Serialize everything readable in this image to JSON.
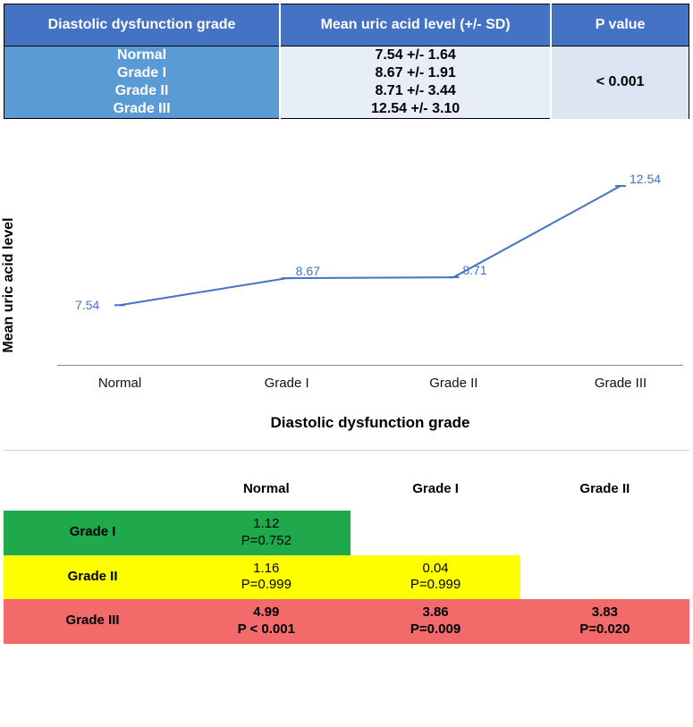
{
  "top_table": {
    "header_bg": "#4472c4",
    "header_fg": "#ffffff",
    "label_bg": "#5b9bd5",
    "value_bg": "#e8eef8",
    "p_bg": "#dce6f2",
    "columns": [
      "Diastolic dysfunction grade",
      "Mean uric acid level (+/- SD)",
      "P value"
    ],
    "rows": [
      {
        "label": "Normal",
        "value": "7.54 +/- 1.64"
      },
      {
        "label": "Grade I",
        "value": "8.67 +/- 1.91"
      },
      {
        "label": "Grade II",
        "value": "8.71 +/- 3.44"
      },
      {
        "label": "Grade III",
        "value": "12.54 +/- 3.10"
      }
    ],
    "p_value": "< 0.001"
  },
  "chart": {
    "type": "line",
    "ylabel": "Mean uric acid level",
    "xlabel": "Diastolic dysfunction grade",
    "line_color": "#4472c4",
    "marker_color": "#4472c4",
    "axis_color": "#888888",
    "label_color": "#4472c4",
    "xlim": [
      0,
      3
    ],
    "ylim": [
      5,
      14
    ],
    "line_width": 2,
    "marker_size": 4,
    "categories": [
      "Normal",
      "Grade I",
      "Grade II",
      "Grade III"
    ],
    "values": [
      7.54,
      8.67,
      8.71,
      12.54
    ],
    "value_labels": [
      "7.54",
      "8.67",
      "8.71",
      "12.54"
    ],
    "tick_fontsize": 15,
    "axis_label_fontsize": 17,
    "data_label_fontsize": 14
  },
  "comparison": {
    "columns": [
      "",
      "Normal",
      "Grade I",
      "Grade II"
    ],
    "row_colors": {
      "Grade I": "#1fa84c",
      "Grade II": "#ffff00",
      "Grade III": "#f26a6a"
    },
    "rows": [
      {
        "label": "Grade I",
        "cells": [
          {
            "diff": "1.12",
            "p": "P=0.752"
          },
          null,
          null
        ]
      },
      {
        "label": "Grade II",
        "cells": [
          {
            "diff": "1.16",
            "p": "P=0.999"
          },
          {
            "diff": "0.04",
            "p": "P=0.999"
          },
          null
        ]
      },
      {
        "label": "Grade III",
        "cells": [
          {
            "diff": "4.99",
            "p": "P < 0.001"
          },
          {
            "diff": "3.86",
            "p": "P=0.009"
          },
          {
            "diff": "3.83",
            "p": "P=0.020"
          }
        ]
      }
    ],
    "col_widths": [
      "200",
      "190",
      "190",
      "190"
    ],
    "font_weight_row3": "bold"
  }
}
